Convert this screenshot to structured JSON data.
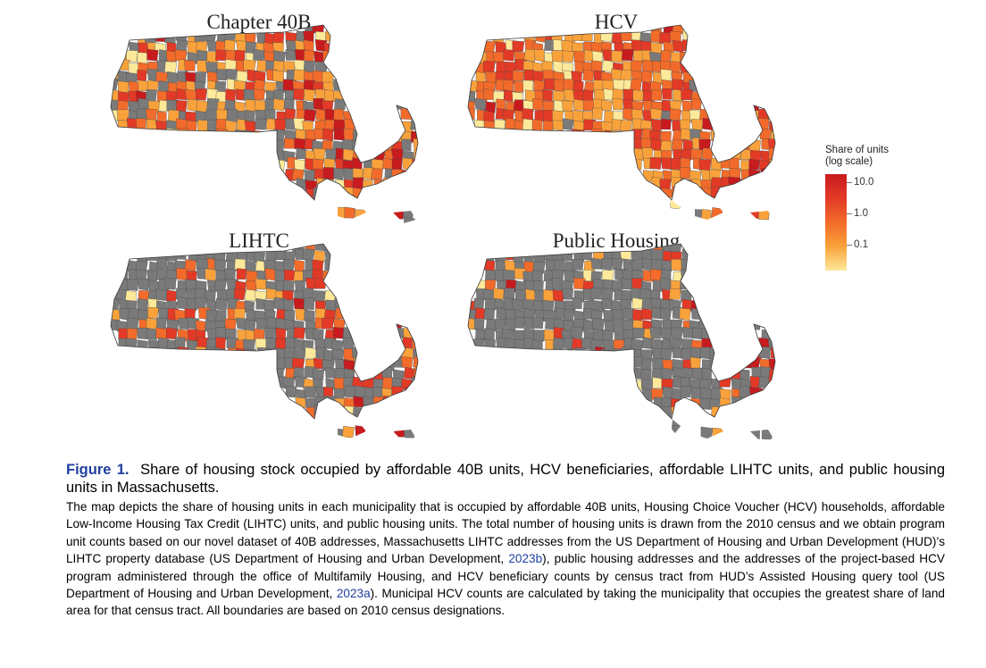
{
  "map_data": {
    "panels": [
      {
        "title": "Chapter 40B",
        "dominant_fill": "mostly colored, many grey gaps"
      },
      {
        "title": "HCV",
        "dominant_fill": "nearly all colored, dark red dense"
      },
      {
        "title": "LIHTC",
        "dominant_fill": "mostly grey, scattered colored"
      },
      {
        "title": "Public Housing",
        "dominant_fill": "mostly grey, few colored"
      }
    ],
    "legend": {
      "title_line1": "Share of units",
      "title_line2": "(log scale)",
      "labels": [
        "10.0",
        "1.0",
        "0.1"
      ],
      "colors": [
        "#c81b1e",
        "#e23a26",
        "#f26b2a",
        "#f9a23b",
        "#fde99a"
      ],
      "no_data_color": "#7a7a7a"
    }
  },
  "caption": {
    "figure_label": "Figure 1.",
    "figure_title": "Share of housing stock occupied by affordable 40B units, HCV beneficiaries, affordable LIHTC units, and public housing units in Massachusetts.",
    "body_part1": "The map depicts the share of housing units in each municipality that is occupied by affordable 40B units, Housing Choice Voucher (HCV) households, affordable Low-Income Housing Tax Credit (LIHTC) units, and public housing units. The total number of housing units is drawn from the 2010 census and we obtain program unit counts based on our novel dataset of 40B addresses, Massachusetts LIHTC addresses from the US Department of Housing and Urban Development (HUD)’s LIHTC property database (US Department of Housing and Urban Development, ",
    "cite1": "2023b",
    "body_part2": "), public housing addresses and the addresses of the project-based HCV program administered through the office of Multifamily Housing, and HCV beneficiary counts by census tract from HUD’s Assisted Housing query tool (US Department of Housing and Urban Development, ",
    "cite2": "2023a",
    "body_part3": "). Municipal HCV counts are calculated by taking the municipality that occupies the greatest share of land area for that census tract. All boundaries are based on 2010 census designations."
  }
}
